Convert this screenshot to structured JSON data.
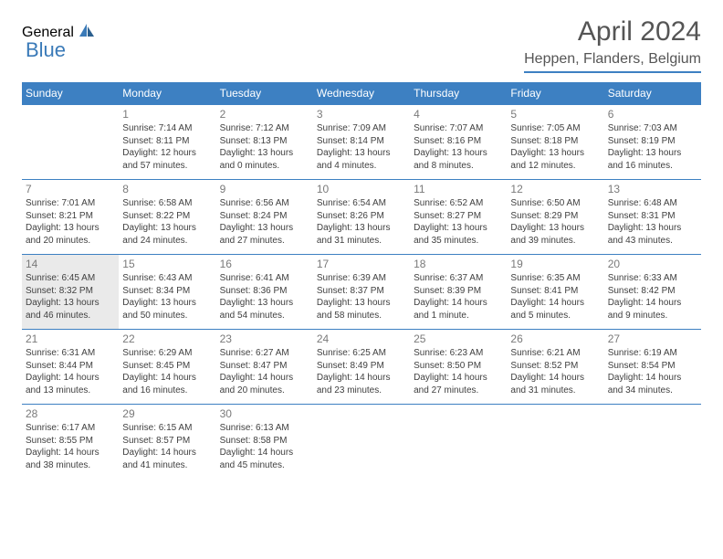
{
  "logo": {
    "text1": "General",
    "text2": "Blue",
    "color1": "#595959",
    "color2": "#3a7ab8"
  },
  "title": "April 2024",
  "location": "Heppen, Flanders, Belgium",
  "colors": {
    "header_bg": "#3d80c2",
    "header_text": "#ffffff",
    "border": "#3d80c2",
    "today_bg": "#eaeaea",
    "daynum": "#7a7a7a",
    "info_text": "#404040"
  },
  "day_headers": [
    "Sunday",
    "Monday",
    "Tuesday",
    "Wednesday",
    "Thursday",
    "Friday",
    "Saturday"
  ],
  "weeks": [
    [
      {
        "day": "",
        "sunrise": "",
        "sunset": "",
        "daylight": ""
      },
      {
        "day": "1",
        "sunrise": "Sunrise: 7:14 AM",
        "sunset": "Sunset: 8:11 PM",
        "daylight": "Daylight: 12 hours and 57 minutes."
      },
      {
        "day": "2",
        "sunrise": "Sunrise: 7:12 AM",
        "sunset": "Sunset: 8:13 PM",
        "daylight": "Daylight: 13 hours and 0 minutes."
      },
      {
        "day": "3",
        "sunrise": "Sunrise: 7:09 AM",
        "sunset": "Sunset: 8:14 PM",
        "daylight": "Daylight: 13 hours and 4 minutes."
      },
      {
        "day": "4",
        "sunrise": "Sunrise: 7:07 AM",
        "sunset": "Sunset: 8:16 PM",
        "daylight": "Daylight: 13 hours and 8 minutes."
      },
      {
        "day": "5",
        "sunrise": "Sunrise: 7:05 AM",
        "sunset": "Sunset: 8:18 PM",
        "daylight": "Daylight: 13 hours and 12 minutes."
      },
      {
        "day": "6",
        "sunrise": "Sunrise: 7:03 AM",
        "sunset": "Sunset: 8:19 PM",
        "daylight": "Daylight: 13 hours and 16 minutes."
      }
    ],
    [
      {
        "day": "7",
        "sunrise": "Sunrise: 7:01 AM",
        "sunset": "Sunset: 8:21 PM",
        "daylight": "Daylight: 13 hours and 20 minutes."
      },
      {
        "day": "8",
        "sunrise": "Sunrise: 6:58 AM",
        "sunset": "Sunset: 8:22 PM",
        "daylight": "Daylight: 13 hours and 24 minutes."
      },
      {
        "day": "9",
        "sunrise": "Sunrise: 6:56 AM",
        "sunset": "Sunset: 8:24 PM",
        "daylight": "Daylight: 13 hours and 27 minutes."
      },
      {
        "day": "10",
        "sunrise": "Sunrise: 6:54 AM",
        "sunset": "Sunset: 8:26 PM",
        "daylight": "Daylight: 13 hours and 31 minutes."
      },
      {
        "day": "11",
        "sunrise": "Sunrise: 6:52 AM",
        "sunset": "Sunset: 8:27 PM",
        "daylight": "Daylight: 13 hours and 35 minutes."
      },
      {
        "day": "12",
        "sunrise": "Sunrise: 6:50 AM",
        "sunset": "Sunset: 8:29 PM",
        "daylight": "Daylight: 13 hours and 39 minutes."
      },
      {
        "day": "13",
        "sunrise": "Sunrise: 6:48 AM",
        "sunset": "Sunset: 8:31 PM",
        "daylight": "Daylight: 13 hours and 43 minutes."
      }
    ],
    [
      {
        "day": "14",
        "today": true,
        "sunrise": "Sunrise: 6:45 AM",
        "sunset": "Sunset: 8:32 PM",
        "daylight": "Daylight: 13 hours and 46 minutes."
      },
      {
        "day": "15",
        "sunrise": "Sunrise: 6:43 AM",
        "sunset": "Sunset: 8:34 PM",
        "daylight": "Daylight: 13 hours and 50 minutes."
      },
      {
        "day": "16",
        "sunrise": "Sunrise: 6:41 AM",
        "sunset": "Sunset: 8:36 PM",
        "daylight": "Daylight: 13 hours and 54 minutes."
      },
      {
        "day": "17",
        "sunrise": "Sunrise: 6:39 AM",
        "sunset": "Sunset: 8:37 PM",
        "daylight": "Daylight: 13 hours and 58 minutes."
      },
      {
        "day": "18",
        "sunrise": "Sunrise: 6:37 AM",
        "sunset": "Sunset: 8:39 PM",
        "daylight": "Daylight: 14 hours and 1 minute."
      },
      {
        "day": "19",
        "sunrise": "Sunrise: 6:35 AM",
        "sunset": "Sunset: 8:41 PM",
        "daylight": "Daylight: 14 hours and 5 minutes."
      },
      {
        "day": "20",
        "sunrise": "Sunrise: 6:33 AM",
        "sunset": "Sunset: 8:42 PM",
        "daylight": "Daylight: 14 hours and 9 minutes."
      }
    ],
    [
      {
        "day": "21",
        "sunrise": "Sunrise: 6:31 AM",
        "sunset": "Sunset: 8:44 PM",
        "daylight": "Daylight: 14 hours and 13 minutes."
      },
      {
        "day": "22",
        "sunrise": "Sunrise: 6:29 AM",
        "sunset": "Sunset: 8:45 PM",
        "daylight": "Daylight: 14 hours and 16 minutes."
      },
      {
        "day": "23",
        "sunrise": "Sunrise: 6:27 AM",
        "sunset": "Sunset: 8:47 PM",
        "daylight": "Daylight: 14 hours and 20 minutes."
      },
      {
        "day": "24",
        "sunrise": "Sunrise: 6:25 AM",
        "sunset": "Sunset: 8:49 PM",
        "daylight": "Daylight: 14 hours and 23 minutes."
      },
      {
        "day": "25",
        "sunrise": "Sunrise: 6:23 AM",
        "sunset": "Sunset: 8:50 PM",
        "daylight": "Daylight: 14 hours and 27 minutes."
      },
      {
        "day": "26",
        "sunrise": "Sunrise: 6:21 AM",
        "sunset": "Sunset: 8:52 PM",
        "daylight": "Daylight: 14 hours and 31 minutes."
      },
      {
        "day": "27",
        "sunrise": "Sunrise: 6:19 AM",
        "sunset": "Sunset: 8:54 PM",
        "daylight": "Daylight: 14 hours and 34 minutes."
      }
    ],
    [
      {
        "day": "28",
        "sunrise": "Sunrise: 6:17 AM",
        "sunset": "Sunset: 8:55 PM",
        "daylight": "Daylight: 14 hours and 38 minutes."
      },
      {
        "day": "29",
        "sunrise": "Sunrise: 6:15 AM",
        "sunset": "Sunset: 8:57 PM",
        "daylight": "Daylight: 14 hours and 41 minutes."
      },
      {
        "day": "30",
        "sunrise": "Sunrise: 6:13 AM",
        "sunset": "Sunset: 8:58 PM",
        "daylight": "Daylight: 14 hours and 45 minutes."
      },
      {
        "day": "",
        "sunrise": "",
        "sunset": "",
        "daylight": ""
      },
      {
        "day": "",
        "sunrise": "",
        "sunset": "",
        "daylight": ""
      },
      {
        "day": "",
        "sunrise": "",
        "sunset": "",
        "daylight": ""
      },
      {
        "day": "",
        "sunrise": "",
        "sunset": "",
        "daylight": ""
      }
    ]
  ]
}
